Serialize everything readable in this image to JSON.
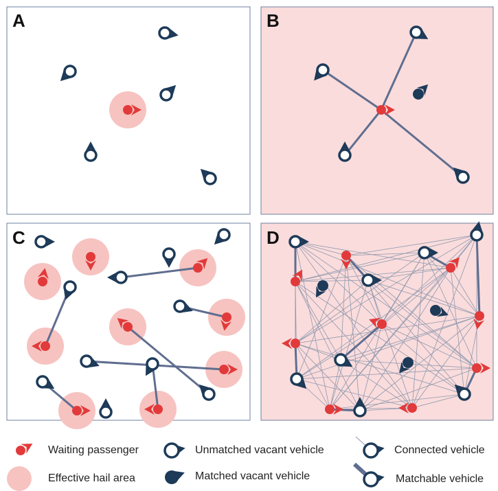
{
  "panels": [
    {
      "label": "A"
    },
    {
      "label": "B"
    },
    {
      "label": "C"
    },
    {
      "label": "D"
    }
  ],
  "legend": [
    {
      "label": "Waiting passenger"
    },
    {
      "label": "Effective hail area"
    },
    {
      "label": "Unmatched vacant vehicle"
    },
    {
      "label": "Matched vacant vehicle"
    },
    {
      "label": "Connected vehicle"
    },
    {
      "label": "Matchable vehicle"
    }
  ]
}
